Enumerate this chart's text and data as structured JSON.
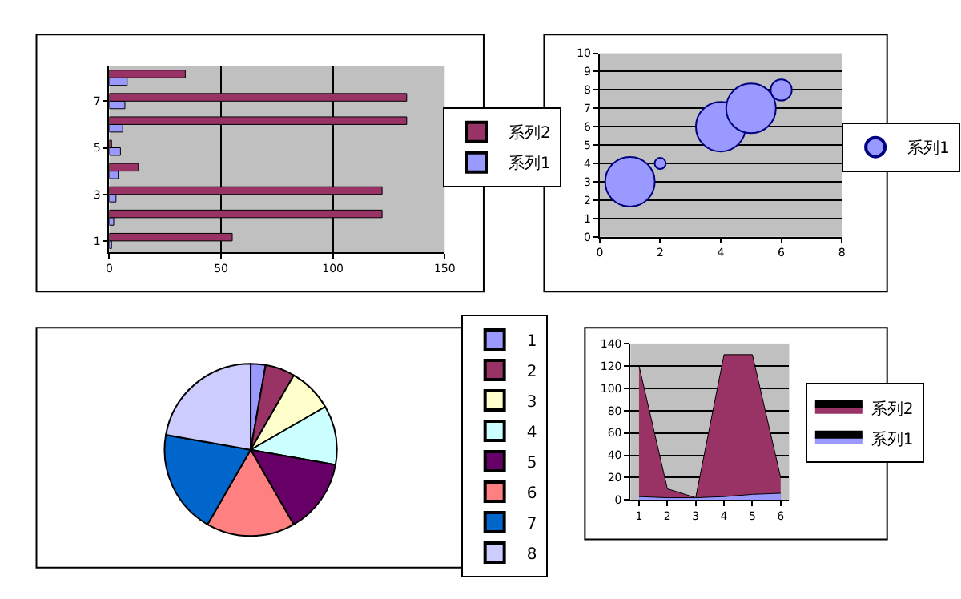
{
  "chart_data": [
    {
      "type": "bar",
      "orientation": "horizontal",
      "categories": [
        null,
        "7",
        null,
        "5",
        null,
        "3",
        null,
        "1"
      ],
      "series": [
        {
          "name": "系列1",
          "color": "#9999ff",
          "values": [
            8,
            7,
            6,
            5,
            4,
            3,
            2,
            1
          ]
        },
        {
          "name": "系列2",
          "color": "#993366",
          "values": [
            34,
            133,
            133,
            1,
            13,
            122,
            122,
            55
          ]
        }
      ],
      "xlim": [
        0,
        150
      ],
      "xticks": [
        0,
        50,
        100,
        150
      ],
      "grid": "x",
      "legend": "right"
    },
    {
      "type": "bubble",
      "x": [
        1,
        2,
        4,
        5,
        6
      ],
      "series": [
        {
          "name": "系列1",
          "color": "#9999ff",
          "values": [
            3,
            4,
            6,
            7,
            8
          ],
          "sizes": [
            1,
            0.05,
            1,
            1,
            0.18
          ]
        }
      ],
      "xlim": [
        0,
        8
      ],
      "xticks": [
        0,
        2,
        4,
        6,
        8
      ],
      "ylim": [
        0,
        10
      ],
      "yticks": [
        0,
        1,
        2,
        3,
        4,
        5,
        6,
        7,
        8,
        9,
        10
      ],
      "grid": "y",
      "legend": "right"
    },
    {
      "type": "pie",
      "categories": [
        "1",
        "2",
        "3",
        "4",
        "5",
        "6",
        "7",
        "8"
      ],
      "values": [
        2.78,
        5.56,
        8.33,
        11.11,
        13.89,
        16.67,
        19.44,
        22.22
      ],
      "colors": [
        "#9999ff",
        "#993366",
        "#ffffcc",
        "#ccffff",
        "#660066",
        "#ff8080",
        "#0066cc",
        "#ccccff"
      ],
      "legend": "right"
    },
    {
      "type": "area",
      "categories": [
        "1",
        "2",
        "3",
        "4",
        "5",
        "6"
      ],
      "series": [
        {
          "name": "系列1",
          "color": "#9999ff",
          "values": [
            3,
            2,
            2,
            3,
            5,
            6
          ]
        },
        {
          "name": "系列2",
          "color": "#993366",
          "values": [
            120,
            10,
            2,
            130,
            130,
            20
          ]
        }
      ],
      "ylim": [
        0,
        140
      ],
      "yticks": [
        0,
        20,
        40,
        60,
        80,
        100,
        120,
        140
      ],
      "grid": "y",
      "legend": "right"
    }
  ]
}
